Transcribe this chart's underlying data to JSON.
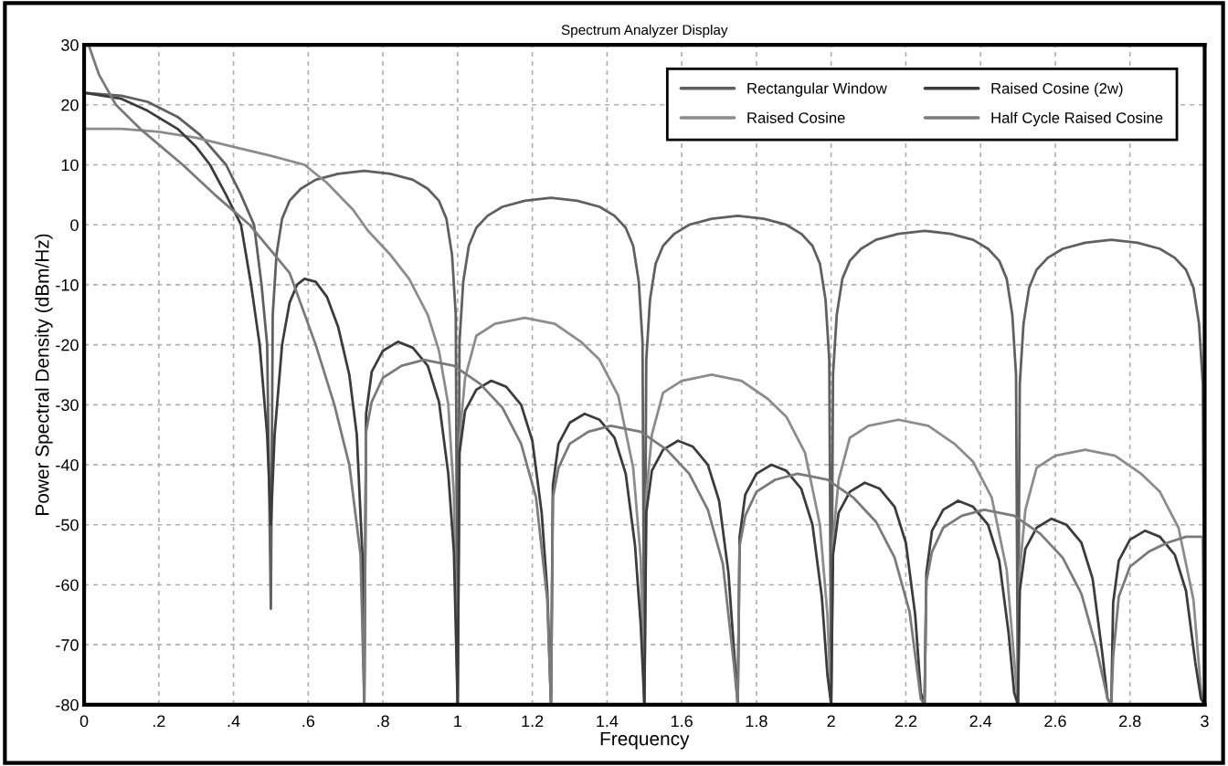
{
  "chart_data": {
    "type": "line",
    "title": "Spectrum Analyzer Display",
    "xlabel": "Frequency",
    "ylabel": "Power Spectral Density (dBm/Hz)",
    "xlim": [
      0,
      3
    ],
    "ylim": [
      -80,
      30
    ],
    "xticks": [
      0,
      {
        "value": 0.2,
        "label": ".2"
      },
      {
        "value": 0.4,
        "label": ".4"
      },
      {
        "value": 0.6,
        "label": ".6"
      },
      {
        "value": 0.8,
        "label": ".8"
      },
      1,
      1.2,
      1.4,
      1.6,
      1.8,
      2,
      2.2,
      2.4,
      2.6,
      2.8,
      3
    ],
    "yticks": [
      -80,
      -70,
      -60,
      -50,
      -40,
      -30,
      -20,
      -10,
      0,
      10,
      20,
      30
    ],
    "grid": true,
    "legend": "top right",
    "line_style": "solid",
    "marker": "none",
    "series": [
      {
        "name": "Rectangular Window",
        "color": "#606060",
        "x": [
          0,
          0.1,
          0.17,
          0.25,
          0.31,
          0.38,
          0.42,
          0.455,
          0.475,
          0.49,
          0.5,
          0.505,
          0.515,
          0.53,
          0.55,
          0.58,
          0.62,
          0.68,
          0.75,
          0.82,
          0.88,
          0.92,
          0.95,
          0.97,
          0.985,
          0.995,
          1.0,
          1.005,
          1.015,
          1.03,
          1.05,
          1.08,
          1.12,
          1.18,
          1.25,
          1.32,
          1.38,
          1.42,
          1.45,
          1.47,
          1.485,
          1.495,
          1.5,
          1.505,
          1.515,
          1.53,
          1.55,
          1.58,
          1.62,
          1.68,
          1.75,
          1.82,
          1.88,
          1.92,
          1.95,
          1.97,
          1.985,
          1.995,
          2.0,
          2.005,
          2.015,
          2.03,
          2.05,
          2.08,
          2.12,
          2.18,
          2.25,
          2.32,
          2.38,
          2.42,
          2.45,
          2.47,
          2.485,
          2.495,
          2.5,
          2.505,
          2.515,
          2.53,
          2.55,
          2.58,
          2.62,
          2.68,
          2.75,
          2.82,
          2.88,
          2.92,
          2.95,
          2.97,
          2.985,
          2.995,
          3.0
        ],
        "values": [
          22,
          21.5,
          20.5,
          18,
          15,
          10,
          5,
          0,
          -10,
          -20,
          -64,
          -15,
          -5,
          1,
          4,
          6,
          7.5,
          8.5,
          9,
          8.5,
          7.5,
          6,
          4,
          1,
          -5,
          -15,
          -80,
          -19.5,
          -9.5,
          -3.5,
          -0.5,
          1.5,
          3,
          4,
          4.5,
          4,
          3,
          1.5,
          -0.5,
          -3.5,
          -9.5,
          -19.5,
          -80,
          -22.5,
          -12.5,
          -6.5,
          -3.5,
          -1.5,
          0,
          1,
          1.5,
          1,
          0,
          -1.5,
          -3.5,
          -6.5,
          -12.5,
          -22.5,
          -80,
          -25,
          -15,
          -9,
          -6,
          -4,
          -2.5,
          -1.5,
          -1,
          -1.5,
          -2.5,
          -4,
          -6,
          -9,
          -15,
          -25,
          -80,
          -26.5,
          -16.5,
          -10.5,
          -7.5,
          -5.5,
          -4,
          -3,
          -2.5,
          -3,
          -4,
          -5.5,
          -7.5,
          -10.5,
          -16.5,
          -26.5,
          -80
        ]
      },
      {
        "name": "Raised Cosine",
        "color": "#8c8c8c",
        "x": [
          0,
          0.1,
          0.2,
          0.3,
          0.4,
          0.5,
          0.59,
          0.65,
          0.72,
          0.76,
          0.82,
          0.87,
          0.92,
          0.95,
          0.975,
          0.99,
          1.0,
          1.005,
          1.02,
          1.05,
          1.1,
          1.18,
          1.26,
          1.33,
          1.38,
          1.43,
          1.47,
          1.49,
          1.5,
          1.505,
          1.52,
          1.55,
          1.6,
          1.68,
          1.76,
          1.83,
          1.88,
          1.93,
          1.97,
          1.99,
          2.0,
          2.005,
          2.02,
          2.05,
          2.1,
          2.18,
          2.26,
          2.33,
          2.38,
          2.43,
          2.47,
          2.49,
          2.5,
          2.505,
          2.52,
          2.55,
          2.6,
          2.68,
          2.76,
          2.83,
          2.88,
          2.93,
          2.97,
          2.99,
          3.0
        ],
        "values": [
          16,
          16,
          15.5,
          14.5,
          13,
          11.5,
          10,
          7,
          2.5,
          -1,
          -5,
          -9,
          -15,
          -21,
          -30,
          -45,
          -80,
          -35.5,
          -25.5,
          -18.5,
          -16.5,
          -15.5,
          -16.5,
          -19.5,
          -22.5,
          -28.5,
          -40.5,
          -55.5,
          -80,
          -45,
          -35,
          -28,
          -26,
          -25,
          -26,
          -29,
          -32,
          -38,
          -50,
          -65,
          -80,
          -52.5,
          -42.5,
          -35.5,
          -33.5,
          -32.5,
          -33.5,
          -36.5,
          -39.5,
          -45.5,
          -57.5,
          -72.5,
          -80,
          -57.5,
          -47.5,
          -40.5,
          -38.5,
          -37.5,
          -38.5,
          -41.5,
          -44.5,
          -50.5,
          -62.5,
          -77.5,
          -80
        ]
      },
      {
        "name": "Raised Cosine (2w)",
        "color": "#3c3c3c",
        "x": [
          0,
          0.1,
          0.17,
          0.25,
          0.3,
          0.337,
          0.38,
          0.42,
          0.447,
          0.47,
          0.49,
          0.5,
          0.51,
          0.53,
          0.55,
          0.57,
          0.59,
          0.62,
          0.65,
          0.68,
          0.71,
          0.73,
          0.745,
          0.75,
          0.755,
          0.77,
          0.8,
          0.84,
          0.88,
          0.92,
          0.95,
          0.975,
          0.99,
          1.0,
          1.005,
          1.02,
          1.05,
          1.09,
          1.13,
          1.17,
          1.2,
          1.225,
          1.24,
          1.25,
          1.255,
          1.27,
          1.3,
          1.34,
          1.38,
          1.42,
          1.45,
          1.475,
          1.49,
          1.5,
          1.505,
          1.52,
          1.55,
          1.59,
          1.63,
          1.67,
          1.7,
          1.725,
          1.74,
          1.75,
          1.755,
          1.77,
          1.8,
          1.84,
          1.88,
          1.92,
          1.95,
          1.975,
          1.99,
          2.0,
          2.005,
          2.02,
          2.05,
          2.09,
          2.13,
          2.17,
          2.2,
          2.225,
          2.24,
          2.25,
          2.255,
          2.27,
          2.3,
          2.34,
          2.38,
          2.42,
          2.45,
          2.475,
          2.49,
          2.5,
          2.505,
          2.52,
          2.55,
          2.59,
          2.63,
          2.67,
          2.7,
          2.725,
          2.74,
          2.75,
          2.755,
          2.77,
          2.8,
          2.84,
          2.88,
          2.92,
          2.95,
          2.975,
          2.99,
          3.0
        ],
        "values": [
          22,
          21,
          19,
          16,
          13,
          10,
          5,
          0,
          -10,
          -20,
          -35,
          -50,
          -35,
          -20,
          -13,
          -10,
          -9,
          -9.5,
          -12,
          -17,
          -25,
          -35,
          -55,
          -80,
          -31.5,
          -24.5,
          -21,
          -19.5,
          -20.5,
          -23.5,
          -29.5,
          -41.5,
          -54.5,
          -80,
          -38,
          -31,
          -27.5,
          -26,
          -27,
          -30,
          -36,
          -48,
          -61,
          -80,
          -43.5,
          -36.5,
          -33,
          -31.5,
          -32.5,
          -35.5,
          -41.5,
          -53.5,
          -66.5,
          -80,
          -48,
          -41,
          -37.5,
          -36,
          -37,
          -40,
          -46,
          -58,
          -71,
          -80,
          -52,
          -45,
          -41.5,
          -40,
          -41,
          -44,
          -50,
          -62,
          -75,
          -80,
          -55,
          -48,
          -44.5,
          -43,
          -44,
          -47,
          -53,
          -65,
          -78,
          -80,
          -58,
          -51,
          -47.5,
          -46,
          -47,
          -50,
          -56,
          -68,
          -78,
          -80,
          -61,
          -54,
          -50.5,
          -49,
          -50,
          -53,
          -59,
          -71,
          -79,
          -80,
          -63,
          -56,
          -52.5,
          -51,
          -52,
          -55,
          -61,
          -73,
          -79,
          -80
        ]
      },
      {
        "name": "Half Cycle Raised Cosine",
        "color": "#7a7a7a",
        "x": [
          0,
          0.012,
          0.04,
          0.085,
          0.15,
          0.264,
          0.35,
          0.443,
          0.55,
          0.62,
          0.67,
          0.71,
          0.74,
          0.75,
          0.755,
          0.77,
          0.8,
          0.85,
          0.91,
          0.99,
          1.06,
          1.12,
          1.17,
          1.21,
          1.24,
          1.25,
          1.255,
          1.27,
          1.3,
          1.35,
          1.41,
          1.49,
          1.56,
          1.62,
          1.67,
          1.71,
          1.74,
          1.75,
          1.755,
          1.77,
          1.8,
          1.85,
          1.91,
          1.99,
          2.06,
          2.12,
          2.17,
          2.21,
          2.24,
          2.25,
          2.255,
          2.27,
          2.3,
          2.35,
          2.41,
          2.49,
          2.56,
          2.62,
          2.67,
          2.71,
          2.74,
          2.75,
          2.755,
          2.77,
          2.8,
          2.85,
          2.9,
          2.95,
          2.995,
          3.0
        ],
        "values": [
          30,
          30,
          25,
          20,
          16,
          10,
          5,
          0,
          -8,
          -20,
          -30,
          -40,
          -55,
          -80,
          -34.5,
          -29.5,
          -25.5,
          -23.5,
          -22.5,
          -23.5,
          -26.5,
          -30.5,
          -36.5,
          -45.5,
          -62.5,
          -80,
          -45.5,
          -40.5,
          -36.5,
          -34.5,
          -33.5,
          -34.5,
          -37.5,
          -41.5,
          -47.5,
          -56.5,
          -73.5,
          -80,
          -53.5,
          -48.5,
          -44.5,
          -42.5,
          -41.5,
          -42.5,
          -45.5,
          -49.5,
          -55.5,
          -64.5,
          -79,
          -80,
          -59.5,
          -54.5,
          -50.5,
          -48.5,
          -47.5,
          -48.5,
          -51.5,
          -55.5,
          -61.5,
          -70.5,
          -79,
          -80,
          -72,
          -62,
          -57,
          -54.5,
          -53,
          -52,
          -52,
          -80
        ]
      }
    ]
  }
}
